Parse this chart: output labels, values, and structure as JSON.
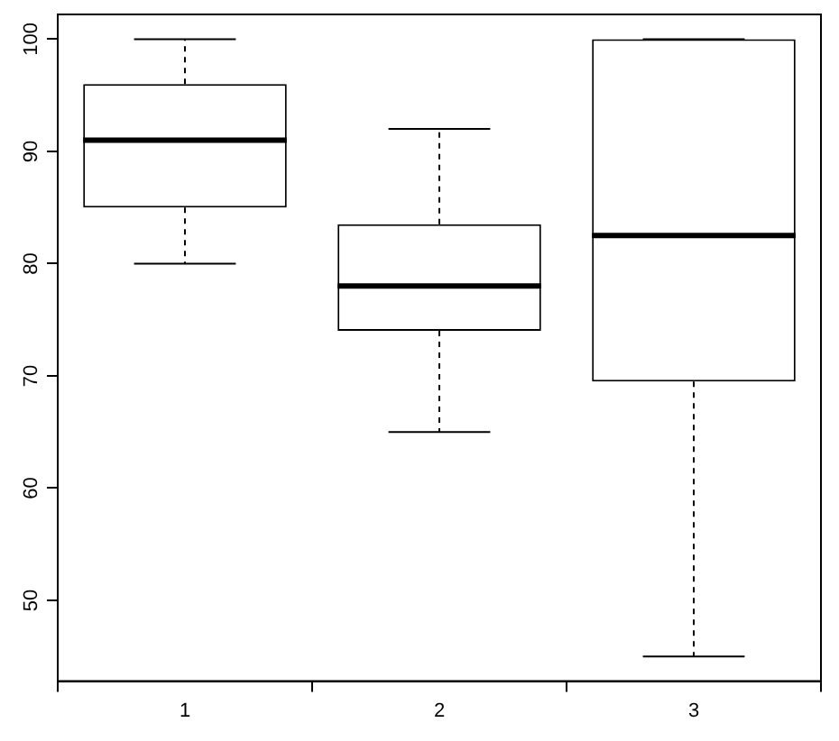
{
  "chart_data": {
    "type": "box",
    "categories": [
      "1",
      "2",
      "3"
    ],
    "boxes": [
      {
        "low": 80,
        "q1": 85,
        "median": 91,
        "q3": 96,
        "high": 100
      },
      {
        "low": 65,
        "q1": 74,
        "median": 78,
        "q3": 83.5,
        "high": 92
      },
      {
        "low": 45,
        "q1": 69.5,
        "median": 82.5,
        "q3": 100,
        "high": 100
      }
    ],
    "ylim": [
      42.8,
      102.2
    ],
    "yticks": [
      50,
      60,
      70,
      80,
      90,
      100
    ],
    "legend": false
  }
}
